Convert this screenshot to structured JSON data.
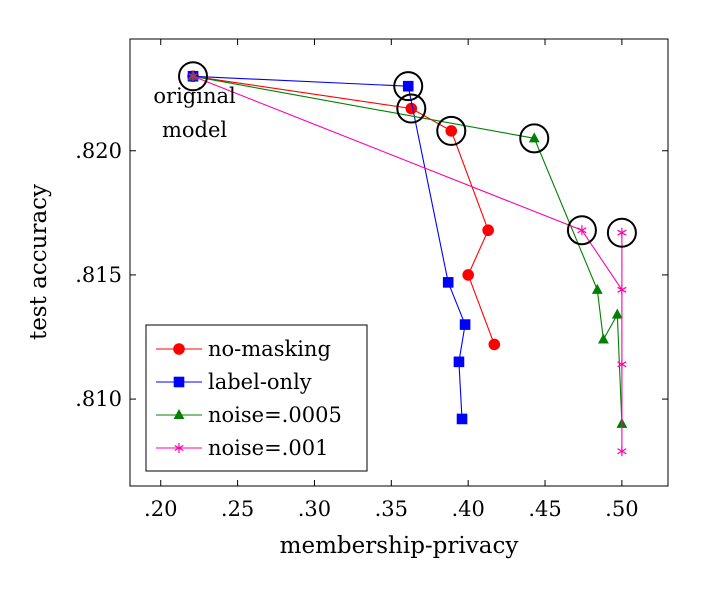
{
  "chart_data": {
    "type": "line",
    "xlabel": "membership-privacy",
    "ylabel": "test accuracy",
    "xlim": [
      0.18,
      0.53
    ],
    "ylim": [
      0.8065,
      0.8245
    ],
    "x_ticks": [
      0.2,
      0.25,
      0.3,
      0.35,
      0.4,
      0.45,
      0.5
    ],
    "x_tick_labels": [
      ".20",
      ".25",
      ".30",
      ".35",
      ".40",
      ".45",
      ".50"
    ],
    "y_ticks": [
      0.81,
      0.815,
      0.82
    ],
    "y_tick_labels": [
      ".810",
      ".815",
      ".820"
    ],
    "grid": false,
    "legend_position": "bottom-left",
    "annotation": {
      "lines": [
        "original",
        "model"
      ],
      "x": 0.222,
      "y": 0.8208
    },
    "series": [
      {
        "name": "no-masking",
        "color": "#ff0000",
        "marker": "circle",
        "points": [
          {
            "x": 0.221,
            "y": 0.823
          },
          {
            "x": 0.363,
            "y": 0.8217
          },
          {
            "x": 0.389,
            "y": 0.8208
          },
          {
            "x": 0.413,
            "y": 0.8168
          },
          {
            "x": 0.4,
            "y": 0.815
          },
          {
            "x": 0.417,
            "y": 0.8122
          }
        ]
      },
      {
        "name": "label-only",
        "color": "#0000ff",
        "marker": "square",
        "points": [
          {
            "x": 0.221,
            "y": 0.823
          },
          {
            "x": 0.361,
            "y": 0.8226
          },
          {
            "x": 0.387,
            "y": 0.8147
          },
          {
            "x": 0.398,
            "y": 0.813
          },
          {
            "x": 0.394,
            "y": 0.8115
          },
          {
            "x": 0.396,
            "y": 0.8092
          }
        ]
      },
      {
        "name": "noise=.0005",
        "color": "#008000",
        "marker": "triangle",
        "points": [
          {
            "x": 0.221,
            "y": 0.823
          },
          {
            "x": 0.443,
            "y": 0.8205
          },
          {
            "x": 0.484,
            "y": 0.8144
          },
          {
            "x": 0.488,
            "y": 0.8124
          },
          {
            "x": 0.497,
            "y": 0.8134
          },
          {
            "x": 0.5,
            "y": 0.809
          }
        ]
      },
      {
        "name": "noise=.001",
        "color": "#ff00aa",
        "marker": "star",
        "points": [
          {
            "x": 0.221,
            "y": 0.823
          },
          {
            "x": 0.474,
            "y": 0.8168
          },
          {
            "x": 0.5,
            "y": 0.8144
          },
          {
            "x": 0.5,
            "y": 0.8167
          },
          {
            "x": 0.5,
            "y": 0.8114
          },
          {
            "x": 0.5,
            "y": 0.8079
          }
        ]
      }
    ],
    "highlighted_points": [
      {
        "x": 0.221,
        "y": 0.823
      },
      {
        "x": 0.361,
        "y": 0.8226
      },
      {
        "x": 0.363,
        "y": 0.8217
      },
      {
        "x": 0.389,
        "y": 0.8208
      },
      {
        "x": 0.443,
        "y": 0.8205
      },
      {
        "x": 0.474,
        "y": 0.8168
      },
      {
        "x": 0.5,
        "y": 0.8167
      }
    ]
  }
}
